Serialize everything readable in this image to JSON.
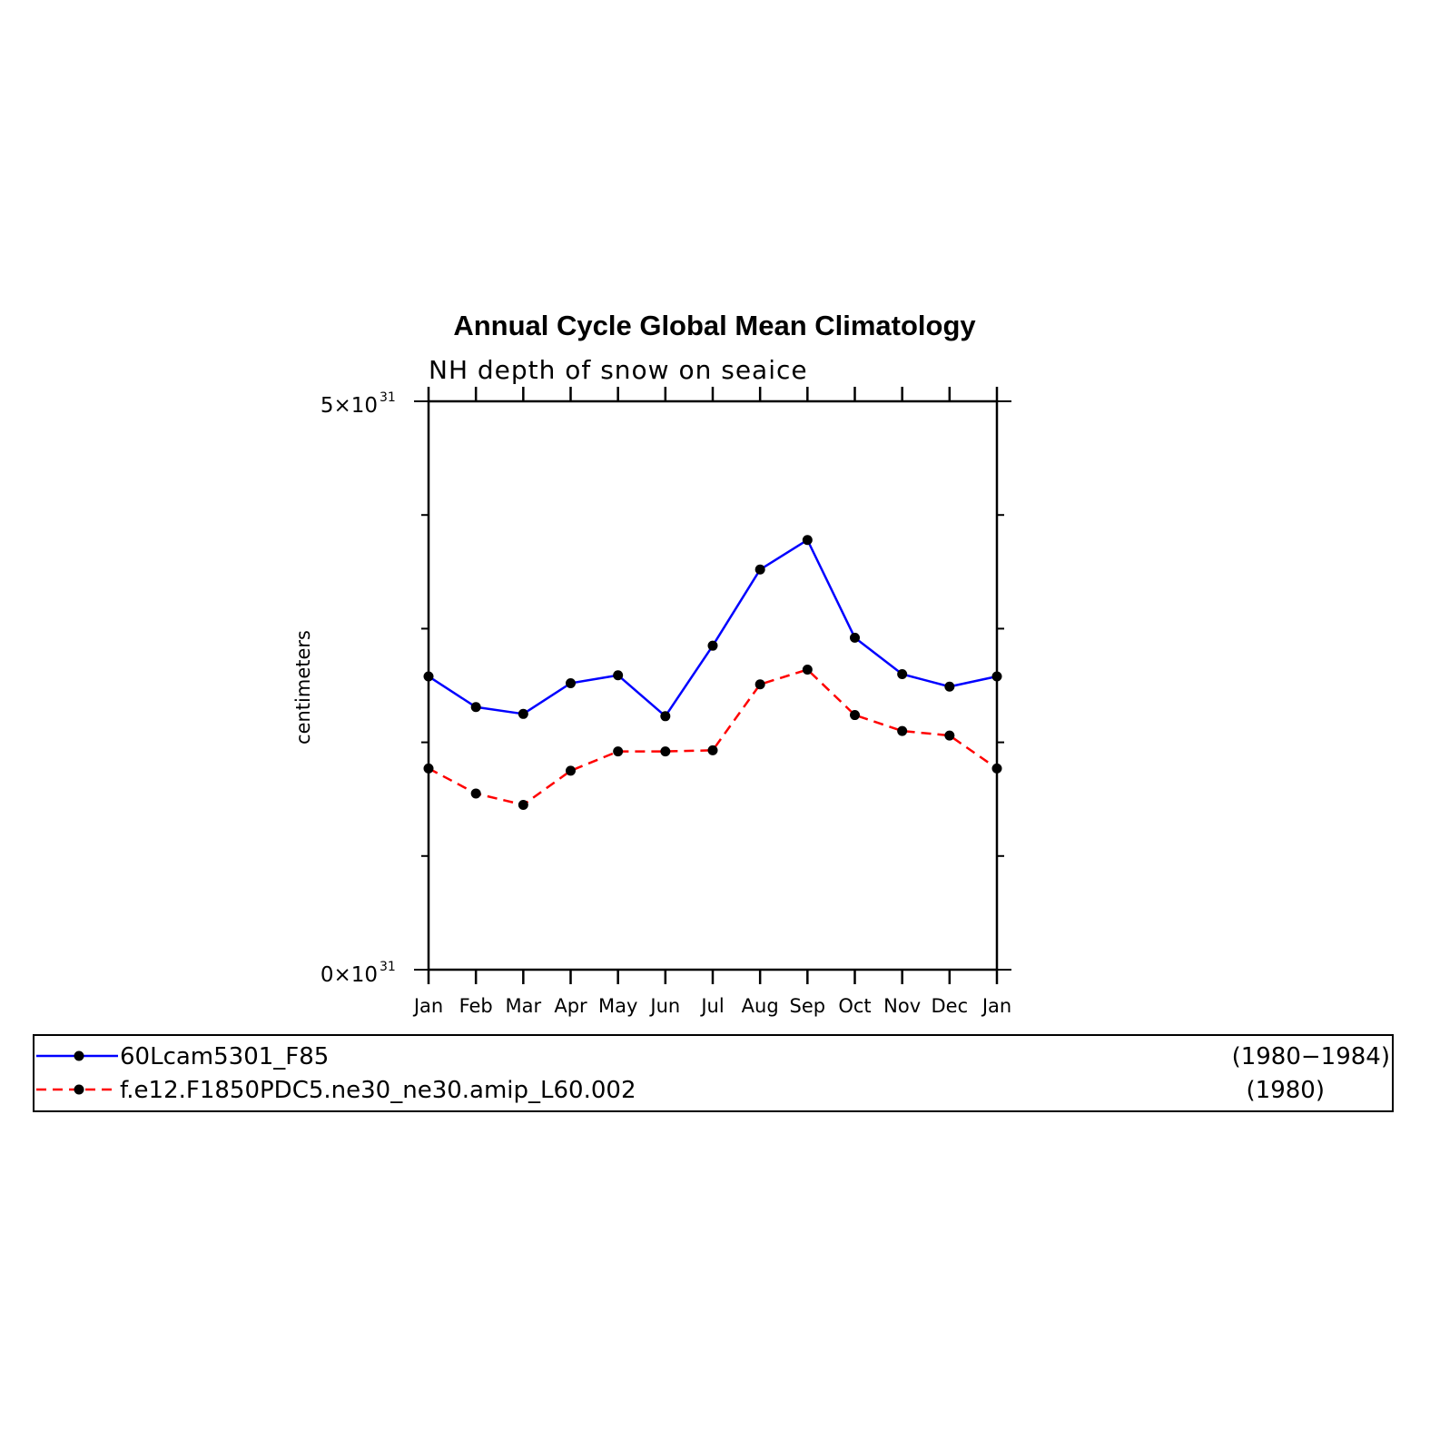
{
  "chart_data": {
    "type": "line",
    "title": "Annual Cycle Global Mean Climatology",
    "subtitle": "NH depth of snow on seaice",
    "ylabel": "centimeters",
    "categories": [
      "Jan",
      "Feb",
      "Mar",
      "Apr",
      "May",
      "Jun",
      "Jul",
      "Aug",
      "Sep",
      "Oct",
      "Nov",
      "Dec",
      "Jan"
    ],
    "y_tick_labels": [
      {
        "value": 5e+31,
        "mantissa": "5×10",
        "exponent": "31"
      },
      {
        "value": 0,
        "mantissa": "0×10",
        "exponent": "31"
      }
    ],
    "ylim": [
      0,
      5e+31
    ],
    "series": [
      {
        "name": "60Lcam5301_F85",
        "period": "(1980−1984)",
        "color": "#0000ff",
        "dash": "solid",
        "values": [
          2.58e+31,
          2.31e+31,
          2.25e+31,
          2.52e+31,
          2.59e+31,
          2.23e+31,
          2.85e+31,
          3.52e+31,
          3.78e+31,
          2.92e+31,
          2.6e+31,
          2.49e+31,
          2.58e+31
        ]
      },
      {
        "name": "f.e12.F1850PDC5.ne30_ne30.amip_L60.002",
        "period": "(1980)",
        "color": "#ff0000",
        "dash": "dashed",
        "values": [
          1.77e+31,
          1.55e+31,
          1.45e+31,
          1.75e+31,
          1.92e+31,
          1.92e+31,
          1.93e+31,
          2.51e+31,
          2.64e+31,
          2.24e+31,
          2.1e+31,
          2.06e+31,
          1.77e+31
        ]
      }
    ],
    "marker_color": "#000000"
  }
}
